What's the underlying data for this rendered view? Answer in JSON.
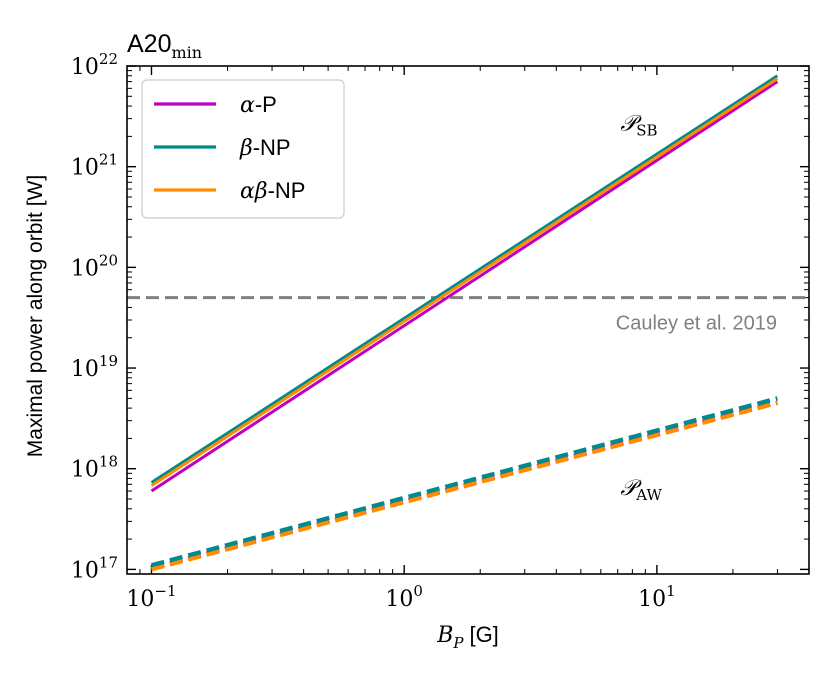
{
  "chart_data": {
    "type": "line",
    "title": {
      "main": "A20",
      "sub": "min"
    },
    "xlabel": {
      "symbol": "B",
      "sub": "P",
      "unit": "[G]"
    },
    "ylabel": "Maximal power along orbit [W]",
    "xscale": "log",
    "yscale": "log",
    "xlim": [
      0.08,
      40
    ],
    "ylim": [
      9e+16,
      1e+22
    ],
    "x_ticks": [
      {
        "value": 0.1,
        "base": "10",
        "exp": "−1"
      },
      {
        "value": 1,
        "base": "10",
        "exp": "0"
      },
      {
        "value": 10,
        "base": "10",
        "exp": "1"
      }
    ],
    "y_ticks": [
      {
        "value": 1e+17,
        "base": "10",
        "exp": "17"
      },
      {
        "value": 1e+18,
        "base": "10",
        "exp": "18"
      },
      {
        "value": 1e+19,
        "base": "10",
        "exp": "19"
      },
      {
        "value": 1e+20,
        "base": "10",
        "exp": "20"
      },
      {
        "value": 1e+21,
        "base": "10",
        "exp": "21"
      },
      {
        "value": 1e+22,
        "base": "10",
        "exp": "22"
      }
    ],
    "legend": {
      "location": "top-left",
      "entries": [
        {
          "greek": "α",
          "suffix": "-P",
          "color": "#c000c0"
        },
        {
          "greek": "β",
          "suffix": "-NP",
          "color": "#008b8b"
        },
        {
          "greek": "αβ",
          "suffix": "-NP",
          "color": "#ff8c00"
        }
      ]
    },
    "series": [
      {
        "name": "α-P",
        "group": "SB",
        "style": "solid",
        "color": "#c000c0",
        "x": [
          0.1,
          30
        ],
        "y": [
          6e+17,
          7e+21
        ]
      },
      {
        "name": "β-NP",
        "group": "SB",
        "style": "solid",
        "color": "#008b8b",
        "x": [
          0.1,
          30
        ],
        "y": [
          7.3e+17,
          8e+21
        ]
      },
      {
        "name": "αβ-NP",
        "group": "SB",
        "style": "solid",
        "color": "#ff8c00",
        "x": [
          0.1,
          30
        ],
        "y": [
          6.8e+17,
          7.5e+21
        ]
      },
      {
        "name": "α-P",
        "group": "AW",
        "style": "dashed",
        "color": "#c000c0",
        "x": [
          0.1,
          30
        ],
        "y": [
          1.03e+17,
          4.55e+18
        ]
      },
      {
        "name": "αβ-NP",
        "group": "AW",
        "style": "dashed",
        "color": "#ff8c00",
        "x": [
          0.1,
          30
        ],
        "y": [
          1e+17,
          4.5e+18
        ]
      },
      {
        "name": "β-NP",
        "group": "AW",
        "style": "dashed",
        "color": "#008b8b",
        "x": [
          0.1,
          30
        ],
        "y": [
          1.1e+17,
          5e+18
        ]
      }
    ],
    "reference_line": {
      "y": 5e+19,
      "label": "Cauley et al. 2019",
      "color": "#808080",
      "style": "dashed"
    },
    "annotations": [
      {
        "symbol": "𝒫",
        "sub": "SB",
        "anchor_x": 8,
        "anchor_y": 2.3e+21
      },
      {
        "symbol": "𝒫",
        "sub": "AW",
        "anchor_x": 8,
        "anchor_y": 5.5e+17
      }
    ]
  }
}
